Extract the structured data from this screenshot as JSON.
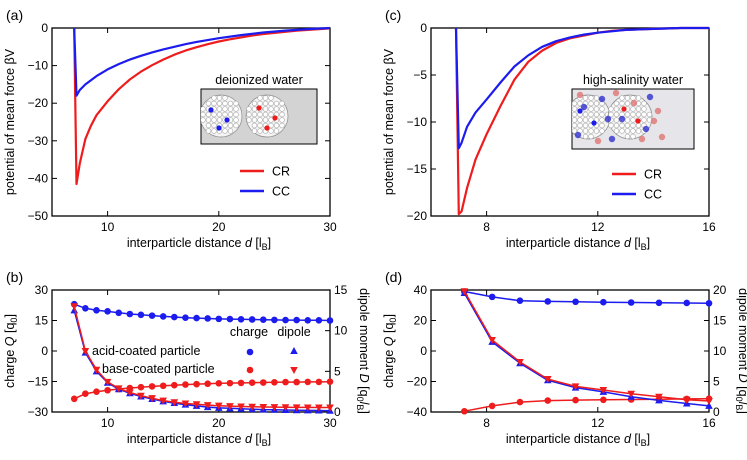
{
  "colors": {
    "red": "#ee1c1c",
    "blue": "#1c1cee",
    "inset_bg": "#d8d8d8"
  },
  "chart_data": [
    {
      "id": "a",
      "panel_label": "(a)",
      "type": "line",
      "xlabel": "interparticle distance",
      "xlabel_var": "d",
      "xlabel_unit": "[l",
      "xlabel_sub": "B",
      "xlabel_close": "]",
      "ylabel": "potential of mean force βV",
      "xlim": [
        5,
        30
      ],
      "ylim": [
        -50,
        0
      ],
      "xticks": [
        10,
        20,
        30
      ],
      "yticks": [
        0,
        -10,
        -20,
        -30,
        -40,
        -50
      ],
      "inset_title": "deionized water",
      "legend": [
        "CR",
        "CC"
      ],
      "series": [
        {
          "name": "CR",
          "color": "red",
          "x": [
            7.0,
            7.2,
            7.5,
            8,
            8.5,
            9,
            10,
            11,
            12,
            13,
            14,
            15,
            16,
            17,
            18,
            19,
            20,
            21,
            22,
            23,
            24,
            25,
            26,
            27,
            28,
            29,
            30
          ],
          "y": [
            0,
            -41.5,
            -36,
            -29.5,
            -26,
            -23.2,
            -19.5,
            -16.3,
            -13.7,
            -11.6,
            -9.9,
            -8.4,
            -7.1,
            -6.0,
            -5.1,
            -4.3,
            -3.6,
            -3.0,
            -2.5,
            -2.0,
            -1.6,
            -1.3,
            -1.0,
            -0.7,
            -0.5,
            -0.3,
            -0.1
          ]
        },
        {
          "name": "CC",
          "color": "blue",
          "x": [
            7.0,
            7.2,
            7.5,
            8,
            9,
            10,
            11,
            12,
            13,
            14,
            15,
            16,
            17,
            18,
            20,
            22,
            24,
            26,
            28,
            30
          ],
          "y": [
            0,
            -18,
            -16.5,
            -15,
            -12.8,
            -11,
            -9.6,
            -8.4,
            -7.4,
            -6.5,
            -5.7,
            -5.0,
            -4.3,
            -3.7,
            -2.7,
            -1.9,
            -1.2,
            -0.7,
            -0.3,
            0
          ]
        }
      ]
    },
    {
      "id": "c",
      "panel_label": "(c)",
      "type": "line",
      "xlabel": "interparticle distance",
      "xlabel_var": "d",
      "xlabel_unit": "[l",
      "xlabel_sub": "B",
      "xlabel_close": "]",
      "ylabel": "potential of mean force βV",
      "xlim": [
        6,
        16
      ],
      "ylim": [
        -20,
        0
      ],
      "xticks": [
        8,
        12,
        16
      ],
      "yticks": [
        0,
        -5,
        -10,
        -15,
        -20
      ],
      "inset_title": "high-salinity water",
      "legend": [
        "CR",
        "CC"
      ],
      "series": [
        {
          "name": "CR",
          "color": "red",
          "x": [
            6.9,
            7.0,
            7.1,
            7.3,
            7.6,
            8,
            8.5,
            9,
            9.5,
            10,
            10.5,
            11,
            11.5,
            12,
            12.5,
            13,
            14,
            15,
            16
          ],
          "y": [
            0,
            -19.8,
            -19.5,
            -17,
            -14,
            -11.3,
            -8.3,
            -5.5,
            -3.6,
            -2.4,
            -1.6,
            -1.1,
            -0.8,
            -0.5,
            -0.3,
            -0.2,
            -0.1,
            0,
            0
          ]
        },
        {
          "name": "CC",
          "color": "blue",
          "x": [
            6.9,
            7.0,
            7.1,
            7.3,
            7.6,
            8,
            8.5,
            9,
            9.5,
            10,
            10.5,
            11,
            11.5,
            12,
            13,
            14,
            15,
            16
          ],
          "y": [
            0,
            -12.8,
            -12.2,
            -10.5,
            -9.0,
            -7.6,
            -5.8,
            -4.1,
            -2.9,
            -2.0,
            -1.4,
            -1.0,
            -0.7,
            -0.5,
            -0.2,
            -0.1,
            0,
            0
          ]
        }
      ]
    },
    {
      "id": "b",
      "panel_label": "(b)",
      "type": "line",
      "xlabel": "interparticle distance",
      "xlabel_var": "d",
      "xlabel_unit": "[l",
      "xlabel_sub": "B",
      "xlabel_close": "]",
      "ylabel": "charge",
      "ylabel_var": "Q",
      "ylabel_unit": "[q",
      "ylabel_sub": "0",
      "ylabel_close": "]",
      "y2label": "dipole moment",
      "y2label_var": "D",
      "y2label_unit": "[q",
      "y2label_sub": "0",
      "y2label_var2": "l",
      "y2label_sub2": "B",
      "y2label_close": "]",
      "xlim": [
        5,
        30
      ],
      "ylim": [
        -30,
        30
      ],
      "y2lim": [
        0,
        15
      ],
      "xticks": [
        10,
        20,
        30
      ],
      "yticks": [
        30,
        15,
        0,
        -15,
        -30
      ],
      "y2ticks": [
        15,
        10,
        5,
        0
      ],
      "legend_header": [
        "charge",
        "dipole"
      ],
      "legend_rows": [
        "acid-coated particle",
        "base-coated particle"
      ],
      "series": [
        {
          "name": "acid-coated charge",
          "color": "blue",
          "axis": "left",
          "marker": "circle",
          "x": [
            7,
            8,
            9,
            10,
            11,
            12,
            13,
            14,
            15,
            16,
            17,
            18,
            19,
            20,
            21,
            22,
            23,
            24,
            25,
            26,
            27,
            28,
            29,
            30
          ],
          "y": [
            23,
            21,
            20,
            19.5,
            18.8,
            18.2,
            17.8,
            17.4,
            17.0,
            16.7,
            16.4,
            16.2,
            16.0,
            15.8,
            15.7,
            15.6,
            15.5,
            15.4,
            15.3,
            15.2,
            15.2,
            15.1,
            15.1,
            15.0
          ]
        },
        {
          "name": "base-coated charge",
          "color": "red",
          "axis": "left",
          "marker": "circle",
          "x": [
            7,
            8,
            9,
            10,
            11,
            12,
            13,
            14,
            15,
            16,
            17,
            18,
            19,
            20,
            21,
            22,
            23,
            24,
            25,
            26,
            27,
            28,
            29,
            30
          ],
          "y": [
            -23.5,
            -21,
            -20,
            -19.3,
            -18.7,
            -18.2,
            -17.8,
            -17.4,
            -17.1,
            -16.8,
            -16.5,
            -16.3,
            -16.1,
            -15.9,
            -15.8,
            -15.7,
            -15.6,
            -15.5,
            -15.4,
            -15.3,
            -15.3,
            -15.2,
            -15.2,
            -15.1
          ]
        },
        {
          "name": "acid-coated dipole",
          "color": "blue",
          "axis": "right",
          "marker": "triangle-up",
          "x": [
            7,
            8,
            9,
            10,
            11,
            12,
            13,
            14,
            15,
            16,
            17,
            18,
            19,
            20,
            21,
            22,
            23,
            24,
            25,
            26,
            27,
            28,
            29,
            30
          ],
          "y": [
            12.5,
            7.3,
            5.0,
            3.6,
            2.8,
            2.3,
            1.9,
            1.6,
            1.3,
            1.1,
            0.9,
            0.75,
            0.6,
            0.5,
            0.45,
            0.4,
            0.35,
            0.3,
            0.28,
            0.25,
            0.22,
            0.2,
            0.18,
            0.15
          ]
        },
        {
          "name": "base-coated dipole",
          "color": "red",
          "axis": "right",
          "marker": "triangle-down",
          "x": [
            7,
            8,
            9,
            10,
            11,
            12,
            13,
            14,
            15,
            16,
            17,
            18,
            19,
            20,
            21,
            22,
            23,
            24,
            25,
            26,
            27,
            28,
            29,
            30
          ],
          "y": [
            13.0,
            7.5,
            5.2,
            3.7,
            2.9,
            2.4,
            2.0,
            1.7,
            1.4,
            1.2,
            1.05,
            0.95,
            0.85,
            0.78,
            0.72,
            0.68,
            0.65,
            0.62,
            0.6,
            0.58,
            0.57,
            0.56,
            0.55,
            0.55
          ]
        }
      ]
    },
    {
      "id": "d",
      "panel_label": "(d)",
      "type": "line",
      "xlabel": "interparticle distance",
      "xlabel_var": "d",
      "xlabel_unit": "[l",
      "xlabel_sub": "B",
      "xlabel_close": "]",
      "ylabel": "charge",
      "ylabel_var": "Q",
      "ylabel_unit": "[q",
      "ylabel_sub": "0",
      "ylabel_close": "]",
      "y2label": "dipole moment",
      "y2label_var": "D",
      "y2label_unit": "[q",
      "y2label_sub": "0",
      "y2label_var2": "l",
      "y2label_sub2": "B",
      "y2label_close": "]",
      "xlim": [
        6,
        16
      ],
      "ylim": [
        -40,
        40
      ],
      "y2lim": [
        0,
        20
      ],
      "xticks": [
        8,
        12,
        16
      ],
      "yticks": [
        40,
        20,
        0,
        -20,
        -40
      ],
      "y2ticks": [
        20,
        15,
        10,
        5,
        0
      ],
      "series": [
        {
          "name": "acid-coated charge",
          "color": "blue",
          "axis": "left",
          "marker": "circle",
          "x": [
            7.2,
            8.2,
            9.2,
            10.2,
            11.2,
            12.2,
            13.2,
            14.2,
            15.2,
            16.0
          ],
          "y": [
            39,
            35.5,
            33,
            32.5,
            32.3,
            32,
            31.8,
            31.6,
            31.5,
            31.3
          ]
        },
        {
          "name": "base-coated charge",
          "color": "red",
          "axis": "left",
          "marker": "circle",
          "x": [
            7.2,
            8.2,
            9.2,
            10.2,
            11.2,
            12.2,
            13.2,
            14.2,
            15.2,
            16.0
          ],
          "y": [
            -39.5,
            -36,
            -33.5,
            -32.5,
            -32.2,
            -32,
            -31.8,
            -31.6,
            -31.4,
            -31.3
          ]
        },
        {
          "name": "acid-coated dipole",
          "color": "blue",
          "axis": "right",
          "marker": "triangle-up",
          "x": [
            7.2,
            8.2,
            9.2,
            10.2,
            11.2,
            12.2,
            13.2,
            14.2,
            15.2,
            16.0
          ],
          "y": [
            19.5,
            11.5,
            8.0,
            5.2,
            4.0,
            3.3,
            2.5,
            1.9,
            1.4,
            1.0
          ]
        },
        {
          "name": "base-coated dipole",
          "color": "red",
          "axis": "right",
          "marker": "triangle-down",
          "x": [
            7.2,
            8.2,
            9.2,
            10.2,
            11.2,
            12.2,
            13.2,
            14.2,
            15.2,
            16.0
          ],
          "y": [
            19.8,
            11.8,
            8.2,
            5.4,
            4.2,
            3.6,
            3.0,
            2.5,
            2.0,
            1.8
          ]
        }
      ]
    }
  ]
}
